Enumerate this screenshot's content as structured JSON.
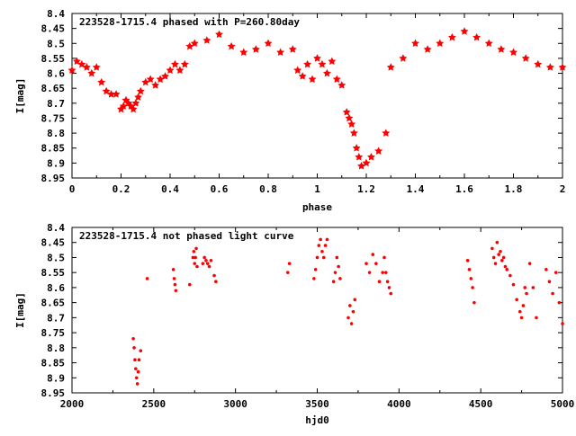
{
  "chart_data": [
    {
      "type": "scatter",
      "title": "223528-1715.4 phased with P=260.80day",
      "xlabel": "phase",
      "ylabel": "I[mag]",
      "xlim": [
        0,
        2
      ],
      "ylim": [
        8.4,
        8.95
      ],
      "y_inverted": true,
      "x_ticks": [
        "0",
        "0.2",
        "0.4",
        "0.6",
        "0.8",
        "1",
        "1.2",
        "1.4",
        "1.6",
        "1.8",
        "2"
      ],
      "y_ticks": [
        "8.4",
        "8.45",
        "8.5",
        "8.55",
        "8.6",
        "8.65",
        "8.7",
        "8.75",
        "8.8",
        "8.85",
        "8.9",
        "8.95"
      ],
      "marker": "star",
      "color": "#ff0000",
      "series": [
        {
          "x": [
            0.0,
            0.02,
            0.04,
            0.06,
            0.08,
            0.1,
            0.12,
            0.14,
            0.16,
            0.18,
            0.2,
            0.21,
            0.22,
            0.23,
            0.24,
            0.25,
            0.26,
            0.27,
            0.28,
            0.3,
            0.32,
            0.34,
            0.36,
            0.38,
            0.4,
            0.42,
            0.44,
            0.46,
            0.48,
            0.5,
            0.55,
            0.6,
            0.65,
            0.7,
            0.75,
            0.8,
            0.85,
            0.9,
            0.92,
            0.94,
            0.96,
            0.98,
            1.0,
            1.02,
            1.04,
            1.06,
            1.08,
            1.1,
            1.12,
            1.13,
            1.14,
            1.15,
            1.16,
            1.17,
            1.18,
            1.2,
            1.22,
            1.25,
            1.28,
            1.3,
            1.35,
            1.4,
            1.45,
            1.5,
            1.55,
            1.6,
            1.65,
            1.7,
            1.75,
            1.8,
            1.85,
            1.9,
            1.95,
            2.0
          ],
          "y": [
            8.59,
            8.56,
            8.57,
            8.58,
            8.6,
            8.58,
            8.63,
            8.66,
            8.67,
            8.67,
            8.72,
            8.71,
            8.69,
            8.7,
            8.71,
            8.72,
            8.7,
            8.68,
            8.66,
            8.63,
            8.62,
            8.64,
            8.62,
            8.61,
            8.59,
            8.57,
            8.59,
            8.57,
            8.51,
            8.5,
            8.49,
            8.47,
            8.51,
            8.53,
            8.52,
            8.5,
            8.53,
            8.52,
            8.59,
            8.61,
            8.57,
            8.62,
            8.55,
            8.57,
            8.6,
            8.56,
            8.62,
            8.64,
            8.73,
            8.75,
            8.77,
            8.8,
            8.85,
            8.88,
            8.91,
            8.9,
            8.88,
            8.86,
            8.8,
            8.58,
            8.55,
            8.5,
            8.52,
            8.5,
            8.48,
            8.46,
            8.48,
            8.5,
            8.52,
            8.53,
            8.55,
            8.57,
            8.58,
            8.58
          ]
        }
      ]
    },
    {
      "type": "scatter",
      "title": "223528-1715.4 not phased light curve",
      "xlabel": "hjd0",
      "ylabel": "I[mag]",
      "xlim": [
        2000,
        5000
      ],
      "ylim": [
        8.4,
        8.95
      ],
      "y_inverted": true,
      "x_ticks": [
        "2000",
        "2500",
        "3000",
        "3500",
        "4000",
        "4500",
        "5000"
      ],
      "y_ticks": [
        "8.4",
        "8.45",
        "8.5",
        "8.55",
        "8.6",
        "8.65",
        "8.7",
        "8.75",
        "8.8",
        "8.85",
        "8.9",
        "8.95"
      ],
      "marker": "dot",
      "color": "#ff0000",
      "series": [
        {
          "x": [
            2375,
            2380,
            2385,
            2390,
            2395,
            2400,
            2405,
            2410,
            2420,
            2460,
            2620,
            2625,
            2630,
            2635,
            2720,
            2740,
            2745,
            2750,
            2755,
            2760,
            2765,
            2800,
            2810,
            2820,
            2830,
            2840,
            2850,
            2870,
            2880,
            3320,
            3330,
            3480,
            3490,
            3500,
            3510,
            3520,
            3530,
            3540,
            3550,
            3560,
            3600,
            3610,
            3620,
            3630,
            3640,
            3690,
            3700,
            3710,
            3720,
            3730,
            3800,
            3820,
            3840,
            3860,
            3880,
            3900,
            3910,
            3920,
            3930,
            3940,
            3950,
            4420,
            4430,
            4440,
            4450,
            4460,
            4570,
            4580,
            4590,
            4600,
            4610,
            4620,
            4630,
            4640,
            4650,
            4660,
            4680,
            4700,
            4720,
            4740,
            4750,
            4760,
            4770,
            4780,
            4800,
            4820,
            4840,
            4900,
            4920,
            4940,
            4960,
            4980,
            5000
          ],
          "y": [
            8.77,
            8.8,
            8.84,
            8.87,
            8.9,
            8.92,
            8.88,
            8.84,
            8.81,
            8.57,
            8.54,
            8.57,
            8.59,
            8.61,
            8.59,
            8.5,
            8.48,
            8.52,
            8.5,
            8.47,
            8.53,
            8.52,
            8.5,
            8.51,
            8.52,
            8.53,
            8.51,
            8.56,
            8.58,
            8.55,
            8.52,
            8.57,
            8.54,
            8.5,
            8.46,
            8.44,
            8.48,
            8.5,
            8.46,
            8.44,
            8.58,
            8.55,
            8.5,
            8.53,
            8.57,
            8.7,
            8.66,
            8.72,
            8.68,
            8.64,
            8.52,
            8.55,
            8.49,
            8.52,
            8.58,
            8.55,
            8.5,
            8.55,
            8.58,
            8.6,
            8.62,
            8.51,
            8.54,
            8.57,
            8.6,
            8.65,
            8.47,
            8.5,
            8.52,
            8.45,
            8.49,
            8.48,
            8.51,
            8.5,
            8.53,
            8.54,
            8.56,
            8.59,
            8.64,
            8.68,
            8.7,
            8.66,
            8.6,
            8.62,
            8.52,
            8.6,
            8.7,
            8.54,
            8.58,
            8.62,
            8.55,
            8.65,
            8.72
          ]
        }
      ]
    }
  ]
}
